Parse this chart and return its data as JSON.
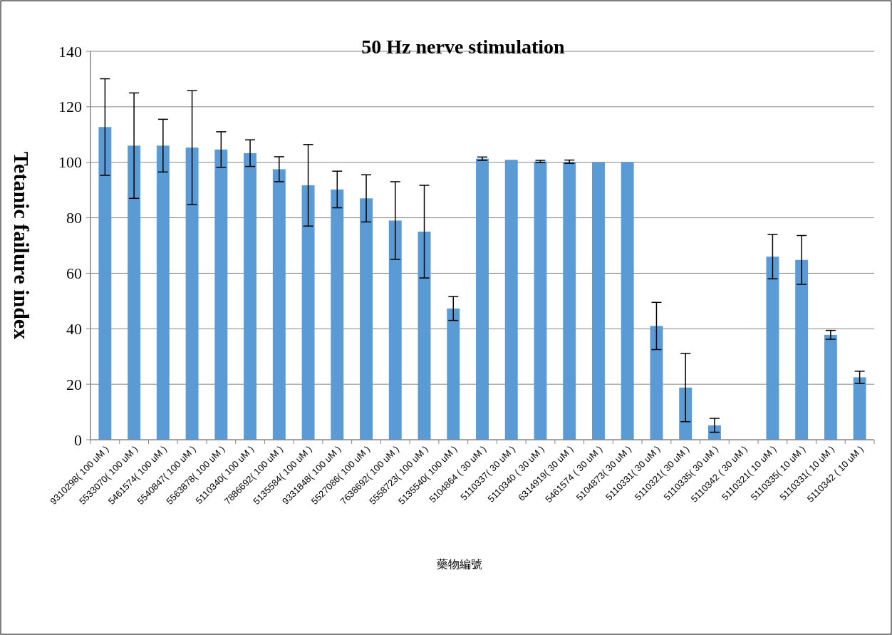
{
  "chart_data": {
    "type": "bar",
    "title": "50 Hz nerve stimulation",
    "ylabel": "Tetanic failure index",
    "xlabel": "藥物編號",
    "categories": [
      "9310298( 100 uM )",
      "5533070( 100 uM )",
      "5461574( 100 uM )",
      "5540847( 100 uM )",
      "5563878( 100 uM )",
      "5110340( 100 uM )",
      "7886692( 100 uM )",
      "5135584( 100 uM )",
      "9331848( 100 uM )",
      "5527086( 100 uM )",
      "7638692( 100 uM )",
      "5558723( 100 uM )",
      "5135540( 100 uM )",
      "5104864 ( 30 uM )",
      "5110337( 30 uM )",
      "5110340 ( 30 uM )",
      "6314919( 30 uM )",
      "5461574 ( 30 uM )",
      "5104873( 30 uM )",
      "5110331( 30 uM )",
      "5110321( 30 uM )",
      "5110335( 30 uM )",
      "5110342 ( 30 uM )",
      "5110321( 10 uM )",
      "5110335( 10 uM )",
      "5110331( 10 uM )",
      "5110342 ( 10 uM )"
    ],
    "values": [
      112.7,
      106,
      106,
      105.3,
      104.6,
      103.3,
      97.5,
      91.7,
      90.2,
      87,
      79,
      75,
      47.3,
      101.3,
      100.9,
      100.3,
      100.2,
      100,
      100,
      41,
      18.8,
      5.2,
      null,
      66,
      64.8,
      37.8,
      22.5
    ],
    "errors": [
      17.4,
      19,
      9.5,
      20.5,
      6.4,
      4.8,
      4.5,
      14.7,
      6.6,
      8.5,
      14,
      16.7,
      4.3,
      0.6,
      null,
      0.4,
      0.6,
      null,
      null,
      8.5,
      12.3,
      2.5,
      null,
      8,
      8.8,
      1.6,
      2.2
    ],
    "color": "#5b9bd5",
    "ylim": [
      0,
      140
    ],
    "yticks": [
      0,
      20,
      40,
      60,
      80,
      100,
      120,
      140
    ],
    "grid": "y"
  }
}
